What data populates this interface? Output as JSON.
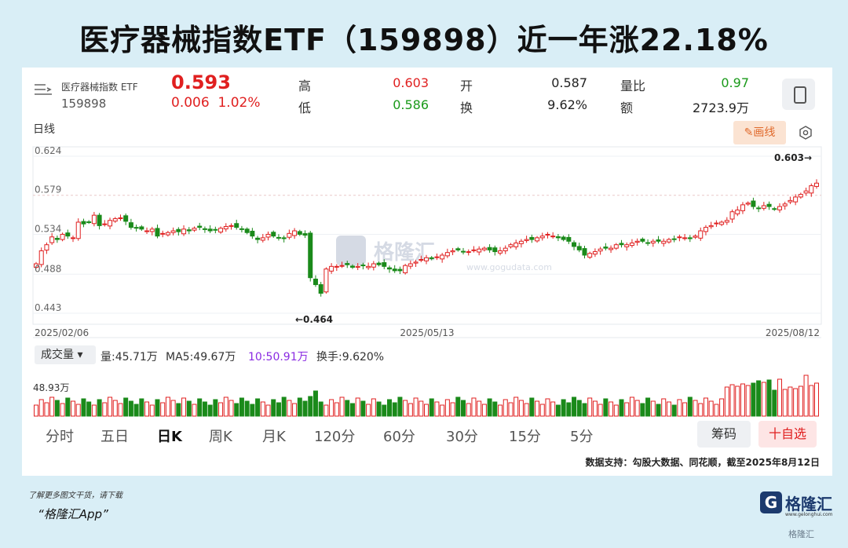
{
  "headline": "医疗器械指数ETF（159898）近一年涨22.18%",
  "quote": {
    "name": "医疗器械指数 ETF",
    "code": "159898",
    "price": "0.593",
    "change": "0.006",
    "change_pct": "1.02%",
    "high_label": "高",
    "high": "0.603",
    "low_label": "低",
    "low": "0.586",
    "open_label": "开",
    "open": "0.587",
    "turnover_label": "换",
    "turnover": "9.62%",
    "vol_ratio_label": "量比",
    "vol_ratio": "0.97",
    "amount_label": "额",
    "amount": "2723.9万"
  },
  "period_label": "日线",
  "draw_label": "✎画线",
  "volume_panel": {
    "selector": "成交量 ▾",
    "vol": "量:45.71万",
    "ma5": "MA5:49.67万",
    "ma10": "10:50.91万",
    "turnover": "换手:9.620%",
    "axis_label": "48.93万"
  },
  "tabs": [
    "分时",
    "五日",
    "日K",
    "周K",
    "月K",
    "120分",
    "60分",
    "30分",
    "15分",
    "5分"
  ],
  "active_tab": "日K",
  "buttons": {
    "chips": "筹码",
    "favorite": "十自选"
  },
  "source": "数据支持：勾股大数据、同花顺，截至2025年8月12日",
  "watermark": {
    "brand": "格隆汇",
    "site": "www.gogudata.com"
  },
  "footer": {
    "line1": "了解更多图文干货，请下载",
    "line2": "“格隆汇App”",
    "logo_text": "格隆汇",
    "logo_url": "www.gelonghui.com",
    "corner": "格隆汇"
  },
  "colors": {
    "up": "#e02020",
    "down": "#1a8a1a",
    "background": "#d9eef6",
    "accent": "#e06a2c"
  },
  "chart_data": {
    "type": "candlestick",
    "y_ticks": [
      "0.624",
      "0.579",
      "0.534",
      "0.488",
      "0.443"
    ],
    "ylim": [
      0.443,
      0.624
    ],
    "x_ticks": [
      "2025/02/06",
      "2025/05/13",
      "2025/08/12"
    ],
    "annotations": {
      "max": "0.603→",
      "min": "←0.464"
    },
    "closes": [
      0.5,
      0.515,
      0.522,
      0.531,
      0.528,
      0.534,
      0.532,
      0.53,
      0.548,
      0.546,
      0.548,
      0.556,
      0.544,
      0.546,
      0.55,
      0.552,
      0.553,
      0.549,
      0.542,
      0.541,
      0.54,
      0.538,
      0.54,
      0.532,
      0.535,
      0.536,
      0.538,
      0.537,
      0.54,
      0.538,
      0.541,
      0.542,
      0.54,
      0.538,
      0.539,
      0.541,
      0.543,
      0.544,
      0.542,
      0.54,
      0.536,
      0.532,
      0.528,
      0.53,
      0.534,
      0.532,
      0.53,
      0.529,
      0.535,
      0.538,
      0.534,
      0.533,
      0.484,
      0.476,
      0.466,
      0.494,
      0.497,
      0.497,
      0.498,
      0.499,
      0.496,
      0.497,
      0.498,
      0.497,
      0.5,
      0.499,
      0.497,
      0.494,
      0.492,
      0.492,
      0.498,
      0.5,
      0.502,
      0.505,
      0.507,
      0.506,
      0.508,
      0.51,
      0.513,
      0.515,
      0.516,
      0.514,
      0.514,
      0.516,
      0.517,
      0.518,
      0.516,
      0.514,
      0.515,
      0.518,
      0.522,
      0.524,
      0.526,
      0.528,
      0.528,
      0.53,
      0.532,
      0.534,
      0.532,
      0.53,
      0.528,
      0.526,
      0.52,
      0.516,
      0.51,
      0.512,
      0.514,
      0.517,
      0.518,
      0.518,
      0.522,
      0.522,
      0.522,
      0.524,
      0.526,
      0.526,
      0.524,
      0.526,
      0.526,
      0.526,
      0.528,
      0.528,
      0.531,
      0.53,
      0.529,
      0.532,
      0.538,
      0.542,
      0.544,
      0.547,
      0.548,
      0.55,
      0.56,
      0.562,
      0.568,
      0.57,
      0.566,
      0.564,
      0.567,
      0.566,
      0.563,
      0.566,
      0.569,
      0.573,
      0.577,
      0.58,
      0.584,
      0.59,
      0.593
    ],
    "volume_ma_label": "MA5 / MA10"
  }
}
